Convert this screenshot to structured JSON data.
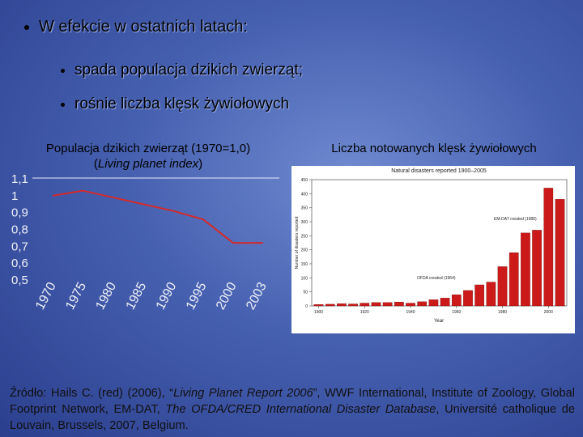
{
  "bullets": {
    "main": "W efekcie w ostatnich latach:",
    "sub": [
      "spada populacja dzikich zwierząt;",
      "rośnie liczba klęsk żywiołowych"
    ]
  },
  "right_heading": "Liczba notowanych klęsk żywiołowych",
  "chart_data": [
    {
      "type": "line",
      "title": "Populacja dzikich zwierząt (1970=1,0)",
      "subtitle": [
        "(",
        "Living planet index",
        ")"
      ],
      "categories": [
        "1970",
        "1975",
        "1980",
        "1985",
        "1990",
        "1995",
        "2000",
        "2003"
      ],
      "values": [
        1.0,
        1.03,
        0.99,
        0.95,
        0.91,
        0.86,
        0.72,
        0.72
      ],
      "color": "#d42a2a",
      "ylim": [
        0.5,
        1.1
      ],
      "yticks": [
        {
          "value": 0.5,
          "label": "0,5"
        },
        {
          "value": 0.6,
          "label": "0,6"
        },
        {
          "value": 0.7,
          "label": "0,7"
        },
        {
          "value": 0.8,
          "label": "0,8"
        },
        {
          "value": 0.9,
          "label": "0,9"
        },
        1,
        {
          "value": 1.1,
          "label": "1,1"
        }
      ],
      "grid": false
    },
    {
      "type": "bar",
      "title": "Natural disasters reported 1900–2005",
      "x_label": "Year",
      "y_label": "Number of disasters reported",
      "x": [
        1900,
        1905,
        1910,
        1915,
        1920,
        1925,
        1930,
        1935,
        1940,
        1945,
        1950,
        1955,
        1960,
        1965,
        1970,
        1975,
        1980,
        1985,
        1990,
        1995,
        2000,
        2005
      ],
      "xlim": [
        1897,
        2008
      ],
      "xticks": [
        1900,
        1920,
        1940,
        1960,
        1980,
        2000
      ],
      "values": [
        5,
        6,
        8,
        7,
        10,
        12,
        12,
        14,
        10,
        15,
        22,
        28,
        40,
        55,
        75,
        85,
        140,
        190,
        260,
        270,
        420,
        380
      ],
      "color": "#cc1a1a",
      "ylim": [
        0,
        450
      ],
      "yticks": [
        0,
        50,
        100,
        150,
        200,
        250,
        300,
        350,
        400,
        450
      ],
      "annotations": [
        "EM-DAT created (1988)",
        "OFDA created (1964)"
      ]
    }
  ],
  "source": [
    "Źródło: Hails C. (red) (2006), “",
    "Living Planet Report 2006",
    "”, WWF International, Institute of Zoology, Global Footprint Network, EM-DAT, ",
    "The OFDA/CRED International Disaster Database",
    ", Université catholique de Louvain, Brussels, 2007, Belgium."
  ]
}
